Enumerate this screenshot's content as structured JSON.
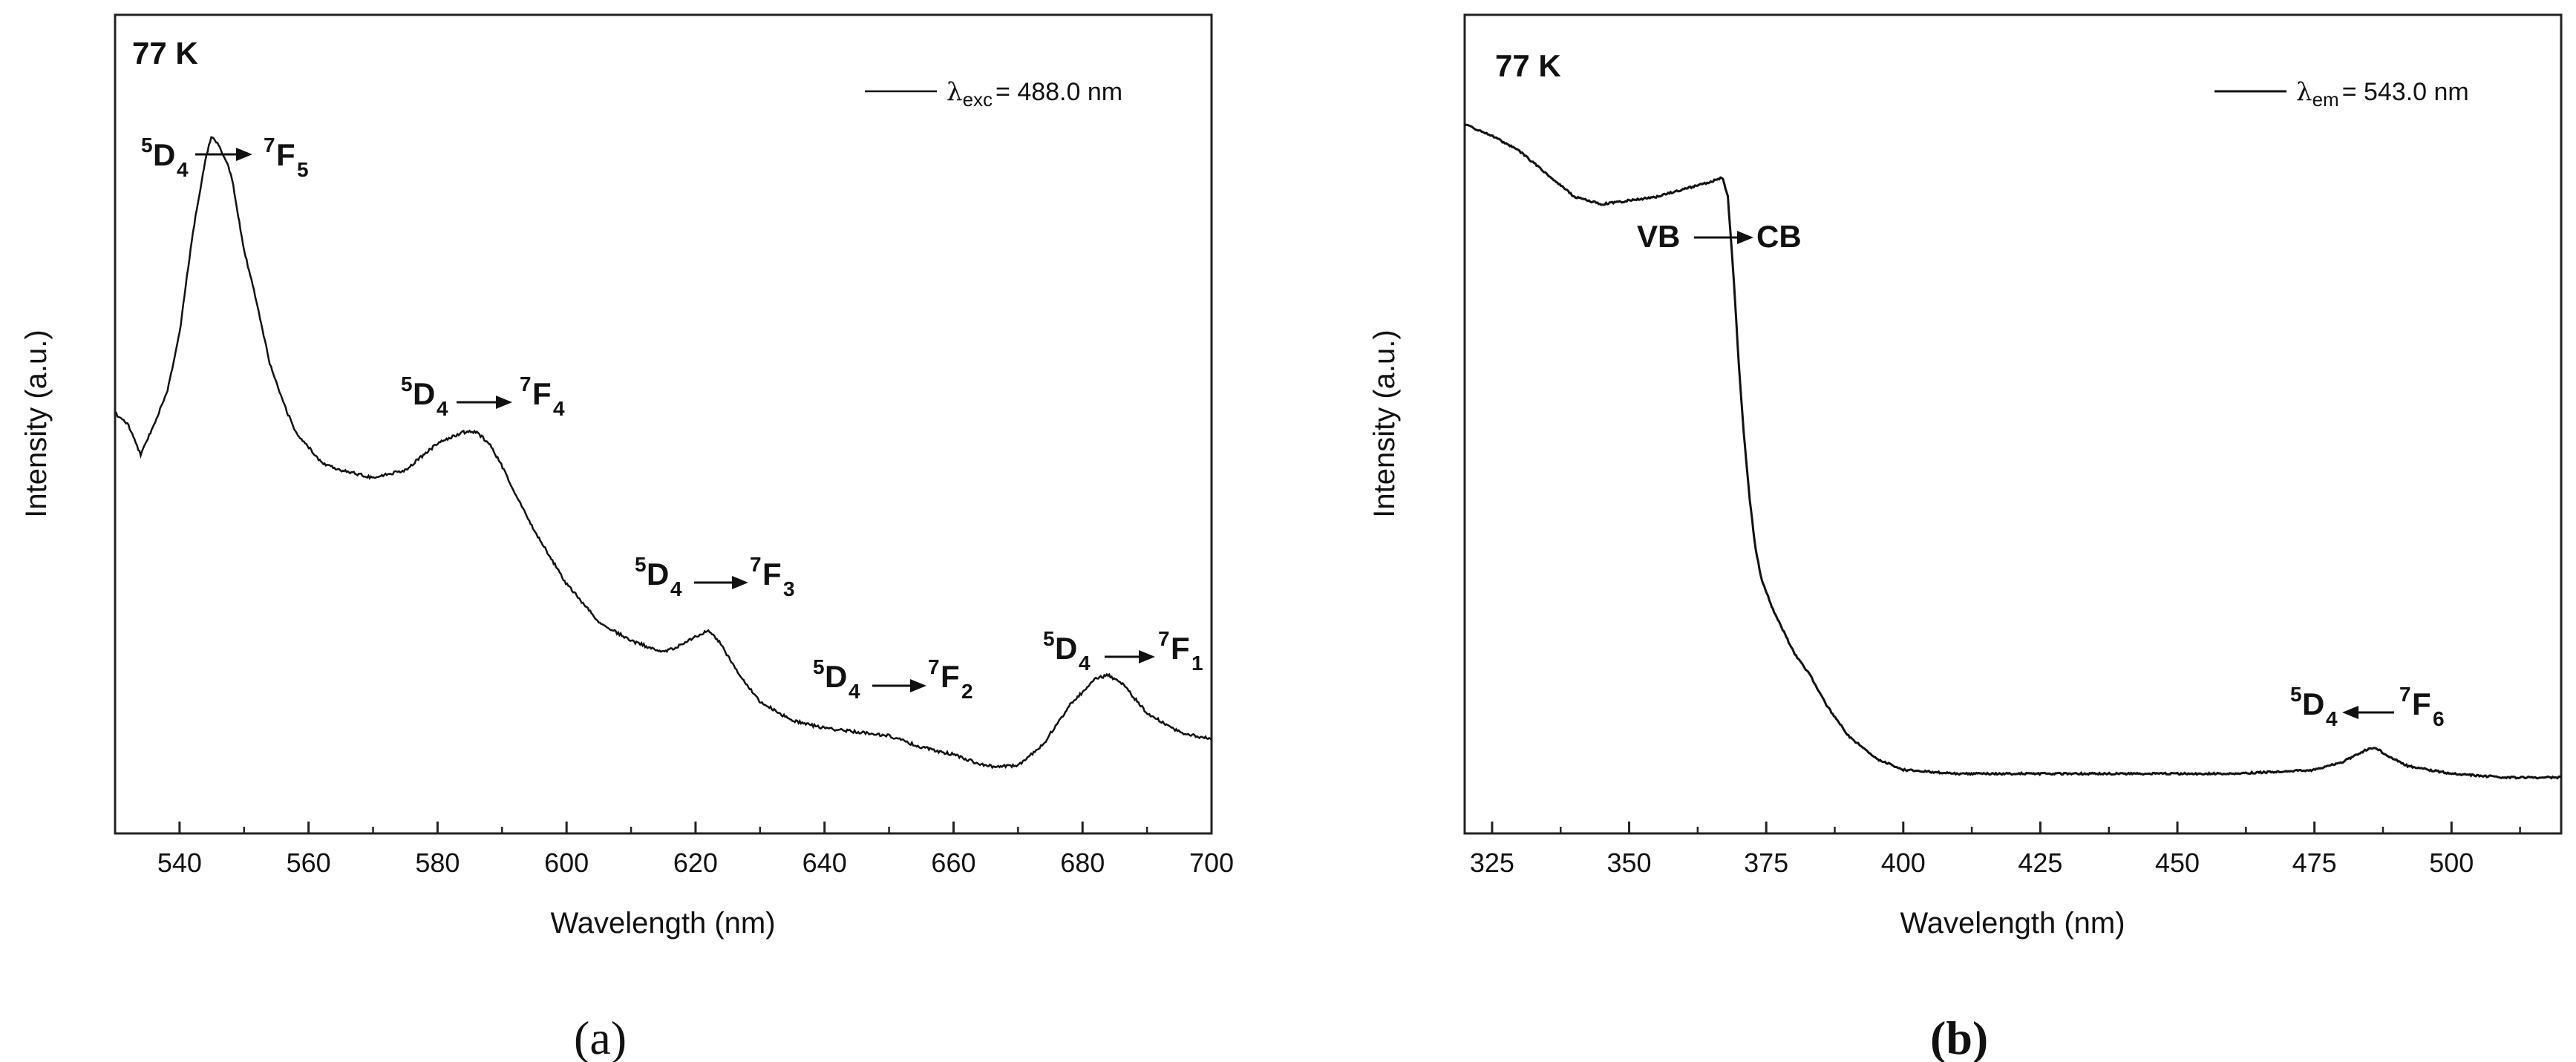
{
  "chart_data": [
    {
      "panel": "a",
      "type": "line",
      "title": "",
      "corner_label": "77 K",
      "xlabel": "Wavelength (nm)",
      "ylabel": "Intensity (a.u.)",
      "xlim": [
        530,
        700
      ],
      "ylim": [
        0,
        100
      ],
      "xticks": [
        540,
        560,
        580,
        600,
        620,
        640,
        660,
        680,
        700
      ],
      "legend": {
        "symbol": "λ",
        "sub": "exc",
        "text": "= 488.0 nm",
        "position": "top-right"
      },
      "series": [
        {
          "name": "λexc = 488.0 nm",
          "x": [
            530,
            532,
            534,
            536,
            538,
            540,
            542,
            544,
            545,
            546,
            548,
            550,
            552,
            554,
            556,
            558,
            560,
            562,
            565,
            570,
            575,
            580,
            584,
            586,
            588,
            590,
            592,
            595,
            600,
            605,
            610,
            615,
            618,
            622,
            624,
            626,
            630,
            635,
            640,
            645,
            650,
            655,
            660,
            665,
            670,
            674,
            678,
            682,
            684,
            686,
            690,
            695,
            700
          ],
          "y": [
            49.5,
            48,
            44,
            48,
            52,
            60,
            73,
            83,
            86,
            85,
            81,
            71,
            64,
            56,
            51,
            47,
            45,
            43,
            42,
            41,
            42,
            45.5,
            47,
            47,
            45.5,
            42.5,
            39,
            34,
            27,
            22,
            19.5,
            18,
            19,
            21,
            19,
            16,
            11.5,
            9,
            8,
            7.5,
            7,
            5.5,
            4.5,
            3,
            3,
            6,
            11,
            14.5,
            15,
            14,
            10,
            7.5,
            6.5
          ]
        }
      ],
      "annotations": [
        {
          "upper": "5",
          "left": "D",
          "lower": "4",
          "upper2": "7",
          "right": "F",
          "lower2": "5"
        },
        {
          "upper": "5",
          "left": "D",
          "lower": "4",
          "upper2": "7",
          "right": "F",
          "lower2": "4"
        },
        {
          "upper": "5",
          "left": "D",
          "lower": "4",
          "upper2": "7",
          "right": "F",
          "lower2": "3"
        },
        {
          "upper": "5",
          "left": "D",
          "lower": "4",
          "upper2": "7",
          "right": "F",
          "lower2": "2"
        },
        {
          "upper": "5",
          "left": "D",
          "lower": "4",
          "upper2": "7",
          "right": "F",
          "lower2": "1"
        }
      ]
    },
    {
      "panel": "b",
      "type": "line",
      "title": "",
      "corner_label": "77 K",
      "xlabel": "Wavelength (nm)",
      "ylabel": "Intensity (a.u.)",
      "xlim": [
        320,
        520
      ],
      "ylim": [
        0,
        100
      ],
      "xticks": [
        325,
        350,
        375,
        400,
        425,
        450,
        475,
        500
      ],
      "legend": {
        "symbol": "λ",
        "sub": "em",
        "text": "= 543.0 nm",
        "position": "top-right"
      },
      "series": [
        {
          "name": "λem = 543.0 nm",
          "x": [
            320,
            325,
            330,
            335,
            340,
            345,
            350,
            355,
            360,
            365,
            367,
            368,
            369,
            370,
            371,
            372,
            373,
            374,
            376,
            378,
            380,
            383,
            386,
            390,
            395,
            400,
            410,
            420,
            440,
            460,
            475,
            480,
            484,
            486,
            488,
            492,
            500,
            510,
            520
          ],
          "y": [
            87.5,
            86,
            84,
            81,
            78,
            77,
            77.5,
            78,
            79,
            80,
            80.5,
            78,
            68,
            56,
            46,
            38,
            32,
            28,
            24,
            21,
            18,
            15,
            11,
            7,
            4,
            2.5,
            2,
            2,
            2,
            2,
            2.5,
            3.5,
            5,
            5.5,
            4.5,
            3,
            2,
            1.5,
            1.5
          ]
        }
      ],
      "annotations": [
        {
          "left": "VB",
          "right": "CB",
          "arrow": "right"
        },
        {
          "upper": "5",
          "left": "D",
          "lower": "4",
          "upper2": "7",
          "right": "F",
          "lower2": "6",
          "arrow": "left"
        }
      ]
    }
  ],
  "panel_labels": [
    "(a)",
    "(b)"
  ]
}
